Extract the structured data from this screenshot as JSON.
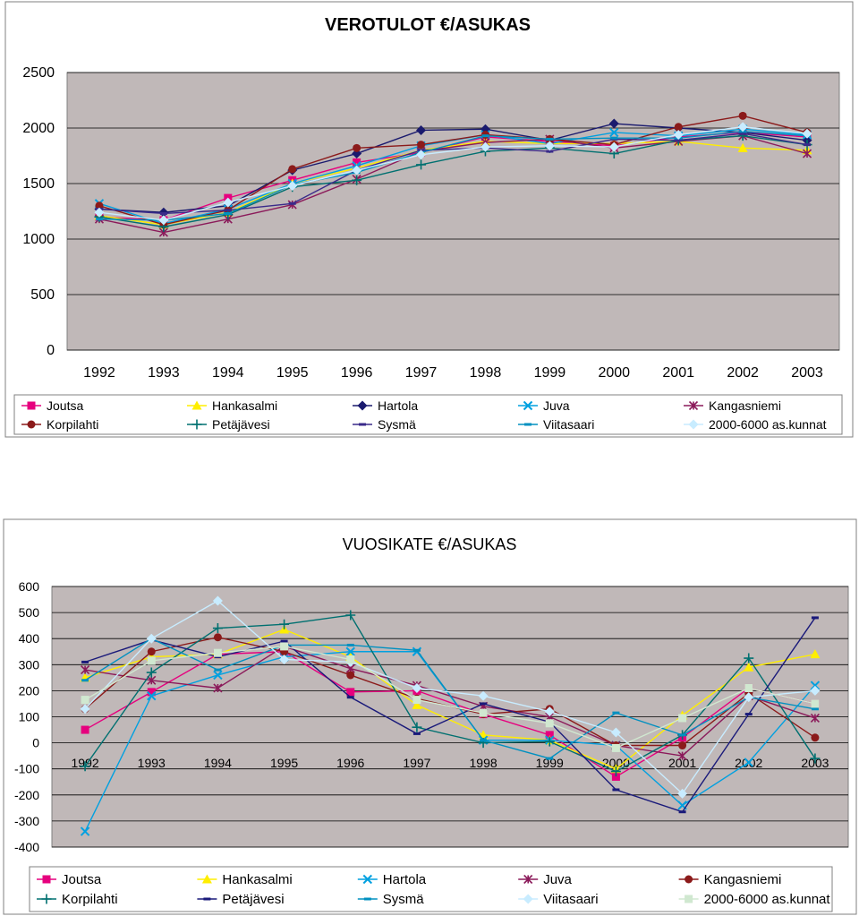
{
  "chart_data": [
    {
      "type": "line",
      "title": "VEROTULOT €/ASUKAS",
      "xlabel": "",
      "ylabel": "",
      "x": [
        "1992",
        "1993",
        "1994",
        "1995",
        "1996",
        "1997",
        "1998",
        "1999",
        "2000",
        "2001",
        "2002",
        "2003"
      ],
      "ylim": [
        0,
        2500
      ],
      "yticks": [
        0,
        500,
        1000,
        1500,
        2000,
        2500
      ],
      "grid": true,
      "legend_position": "bottom",
      "plot_background": "#c0b8b8",
      "series": [
        {
          "name": "Joutsa",
          "color": "#e6007e",
          "marker": "square",
          "values": [
            1200,
            1170,
            1370,
            1530,
            1690,
            1780,
            1920,
            1880,
            1840,
            1920,
            1960,
            1920
          ]
        },
        {
          "name": "Hankasalmi",
          "color": "#ffee00",
          "marker": "triangle",
          "values": [
            1210,
            1130,
            1240,
            1500,
            1640,
            1800,
            1880,
            1860,
            1860,
            1880,
            1820,
            1800
          ]
        },
        {
          "name": "Hartola",
          "color": "#1a1a6e",
          "marker": "diamond",
          "values": [
            1270,
            1240,
            1300,
            1620,
            1770,
            1980,
            1990,
            1890,
            2040,
            2000,
            1960,
            1890
          ]
        },
        {
          "name": "Juva",
          "color": "#00a0e0",
          "marker": "x",
          "values": [
            1320,
            1140,
            1270,
            1500,
            1660,
            1840,
            1940,
            1860,
            1960,
            1930,
            1990,
            1940
          ]
        },
        {
          "name": "Kangasniemi",
          "color": "#8b1a5a",
          "marker": "star",
          "values": [
            1180,
            1060,
            1180,
            1310,
            1540,
            1790,
            1870,
            1900,
            1820,
            1880,
            1930,
            1770
          ]
        },
        {
          "name": "Korpilahti",
          "color": "#8b1a1a",
          "marker": "circle",
          "values": [
            1300,
            1130,
            1260,
            1630,
            1820,
            1850,
            1940,
            1900,
            1850,
            2010,
            2110,
            1960
          ]
        },
        {
          "name": "Petäjävesi",
          "color": "#007070",
          "marker": "plus",
          "values": [
            1200,
            1110,
            1220,
            1470,
            1530,
            1670,
            1790,
            1820,
            1770,
            1890,
            1930,
            1850
          ]
        },
        {
          "name": "Sysmä",
          "color": "#3a2a8a",
          "marker": "dash",
          "values": [
            1270,
            1230,
            1260,
            1320,
            1620,
            1800,
            1820,
            1790,
            1900,
            1890,
            1950,
            1850
          ]
        },
        {
          "name": "Viitasaari",
          "color": "#0090c0",
          "marker": "dash",
          "values": [
            1180,
            1170,
            1230,
            1490,
            1600,
            1780,
            1930,
            1900,
            1910,
            1910,
            1970,
            1930
          ]
        },
        {
          "name": "2000-6000 as.kunnat",
          "color": "#c8ecff",
          "marker": "diamond",
          "values": [
            1240,
            1170,
            1330,
            1480,
            1620,
            1760,
            1830,
            1840,
            1830,
            1940,
            2010,
            1950
          ]
        }
      ]
    },
    {
      "type": "line",
      "title": "VUOSIKATE €/ASUKAS",
      "xlabel": "",
      "ylabel": "",
      "x": [
        "1992",
        "1993",
        "1994",
        "1995",
        "1996",
        "1997",
        "1998",
        "1999",
        "2000",
        "2001",
        "2002",
        "2003"
      ],
      "ylim": [
        -400,
        600
      ],
      "yticks": [
        -400,
        -300,
        -200,
        -100,
        0,
        100,
        200,
        300,
        400,
        500,
        600
      ],
      "grid": true,
      "legend_position": "bottom",
      "plot_background": "#c0b8b8",
      "series": [
        {
          "name": "Joutsa",
          "color": "#e6007e",
          "marker": "square",
          "values": [
            50,
            195,
            340,
            350,
            195,
            200,
            110,
            30,
            -130,
            20,
            210,
            150
          ]
        },
        {
          "name": "Hankasalmi",
          "color": "#ffee00",
          "marker": "triangle",
          "values": [
            250,
            330,
            340,
            435,
            330,
            145,
            30,
            10,
            -100,
            105,
            290,
            340
          ]
        },
        {
          "name": "Hartola",
          "color": "#00a0e0",
          "marker": "x",
          "values": [
            -340,
            180,
            260,
            330,
            350,
            350,
            10,
            10,
            -10,
            -240,
            -75,
            220
          ]
        },
        {
          "name": "Juva",
          "color": "#8b1a5a",
          "marker": "star",
          "values": [
            280,
            240,
            210,
            370,
            285,
            220,
            140,
            100,
            -10,
            -50,
            180,
            95
          ]
        },
        {
          "name": "Kangasniemi",
          "color": "#8b1a1a",
          "marker": "circle",
          "values": [
            130,
            350,
            405,
            350,
            260,
            170,
            110,
            130,
            -10,
            -10,
            190,
            20
          ]
        },
        {
          "name": "Korpilahti",
          "color": "#007070",
          "marker": "plus",
          "values": [
            -90,
            270,
            440,
            455,
            490,
            60,
            0,
            5,
            -110,
            30,
            325,
            -60
          ]
        },
        {
          "name": "Petäjävesi",
          "color": "#1a1a7a",
          "marker": "dash",
          "values": [
            310,
            395,
            330,
            390,
            175,
            35,
            150,
            80,
            -180,
            -265,
            110,
            480
          ]
        },
        {
          "name": "Sysmä",
          "color": "#0090c0",
          "marker": "dash",
          "values": [
            240,
            400,
            280,
            375,
            375,
            355,
            10,
            -60,
            115,
            30,
            175,
            130
          ]
        },
        {
          "name": "Viitasaari",
          "color": "#c8ecff",
          "marker": "diamond",
          "values": [
            130,
            400,
            545,
            320,
            310,
            210,
            180,
            120,
            40,
            -195,
            175,
            200
          ]
        },
        {
          "name": "2000-6000 as.kunnat",
          "color": "#d0e8d0",
          "marker": "square",
          "values": [
            165,
            315,
            345,
            370,
            320,
            165,
            115,
            75,
            -20,
            95,
            210,
            150
          ]
        }
      ]
    }
  ]
}
